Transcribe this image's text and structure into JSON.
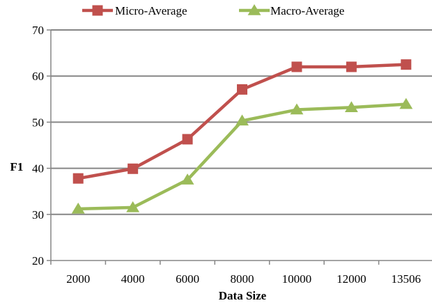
{
  "chart_data": {
    "type": "line",
    "title": "",
    "xlabel": "Data Size",
    "ylabel": "F1",
    "categories": [
      "2000",
      "4000",
      "6000",
      "8000",
      "10000",
      "12000",
      "13506"
    ],
    "ylim": [
      20,
      70
    ],
    "yticks": [
      "20",
      "30",
      "40",
      "50",
      "60",
      "70"
    ],
    "grid": true,
    "legend_position": "top",
    "series": [
      {
        "name": "Micro-Average",
        "color": "#c0504d",
        "marker": "square",
        "values": [
          37.8,
          39.9,
          46.3,
          57.1,
          62.0,
          62.0,
          62.5
        ]
      },
      {
        "name": "Macro-Average",
        "color": "#9bbb59",
        "marker": "triangle",
        "values": [
          31.2,
          31.5,
          37.5,
          50.3,
          52.7,
          53.2,
          53.9
        ]
      }
    ]
  }
}
